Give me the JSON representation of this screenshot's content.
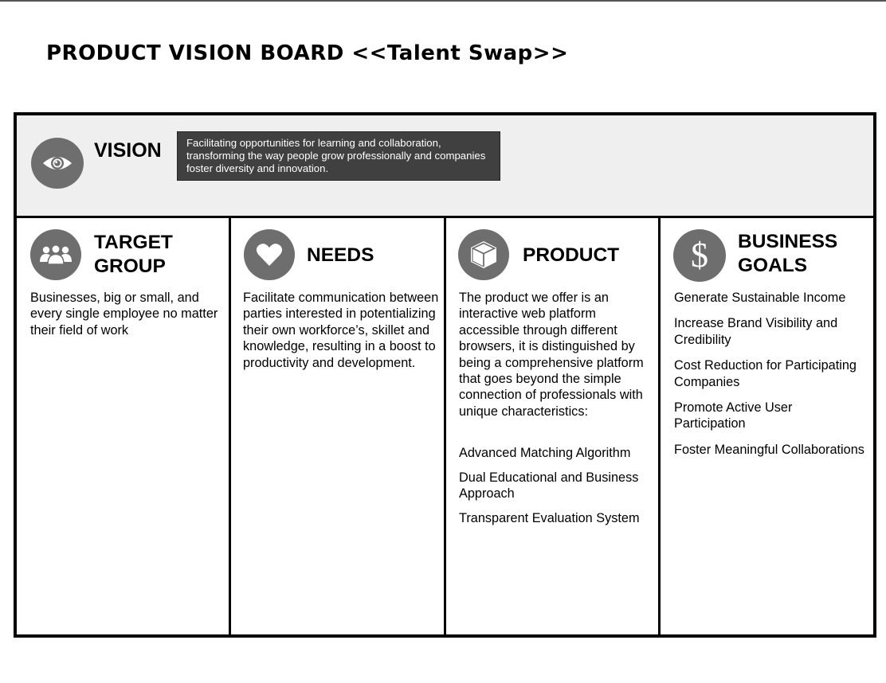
{
  "page": {
    "title": "PRODUCT VISION BOARD <<Talent Swap>>"
  },
  "vision": {
    "label": "VISION",
    "statement": "Facilitating opportunities for learning and collaboration, transforming the way people grow professionally and companies foster diversity and innovation."
  },
  "target_group": {
    "title_line1": "TARGET",
    "title_line2": "GROUP",
    "text": "Businesses, big or small, and every single employee no matter their field of work"
  },
  "needs": {
    "title": "NEEDS",
    "text": "Facilitate communication between parties interested in potentializing their own workforce’s, skillet and knowledge, resulting in a boost to productivity and development."
  },
  "product": {
    "title": "PRODUCT",
    "text": "The product we offer is an interactive web platform accessible through different browsers, it is distinguished by being a comprehensive platform that goes beyond the simple connection of professionals with unique characteristics:",
    "features": [
      "Advanced Matching Algorithm",
      "Dual Educational and Business Approach",
      "Transparent Evaluation System"
    ]
  },
  "business_goals": {
    "title_line1": "BUSINESS",
    "title_line2": "GOALS",
    "icon_glyph": "$",
    "goals": [
      "Generate Sustainable Income",
      "Increase Brand Visibility and Credibility",
      "Cost Reduction for Participating Companies",
      "Promote Active User Participation",
      "Foster Meaningful Collaborations"
    ]
  },
  "colors": {
    "icon_fill": "#6e6e6e",
    "vision_band": "#efefef",
    "vision_box": "#404040"
  },
  "icons": [
    "eye-icon",
    "people-group-icon",
    "heart-icon",
    "box-icon",
    "dollar-icon"
  ]
}
